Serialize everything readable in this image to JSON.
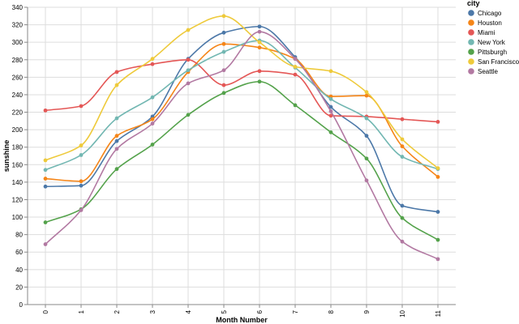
{
  "chart_data": {
    "type": "line",
    "xlabel": "Month Number",
    "ylabel": "sunshine",
    "x": [
      0,
      1,
      2,
      3,
      4,
      5,
      6,
      7,
      8,
      9,
      10,
      11
    ],
    "ylim": [
      0,
      340
    ],
    "yticks": [
      0,
      20,
      40,
      60,
      80,
      100,
      120,
      140,
      160,
      180,
      200,
      220,
      240,
      260,
      280,
      300,
      320,
      340
    ],
    "grid": true,
    "legend": {
      "title": "city",
      "position": "top-right"
    },
    "series": [
      {
        "name": "Chicago",
        "color": "#4c78a8",
        "values": [
          135,
          136,
          187,
          215,
          281,
          311,
          318,
          283,
          226,
          193,
          113,
          106
        ]
      },
      {
        "name": "Houston",
        "color": "#f58518",
        "values": [
          144,
          141,
          193,
          212,
          266,
          298,
          294,
          281,
          238,
          239,
          181,
          146
        ]
      },
      {
        "name": "Miami",
        "color": "#e45756",
        "values": [
          222,
          227,
          266,
          275,
          280,
          251,
          267,
          263,
          216,
          215,
          212,
          209
        ]
      },
      {
        "name": "New York",
        "color": "#72b7b2",
        "values": [
          154,
          171,
          213,
          237,
          268,
          289,
          302,
          271,
          235,
          213,
          169,
          155
        ]
      },
      {
        "name": "Pittsburgh",
        "color": "#54a24b",
        "values": [
          94,
          109,
          155,
          183,
          217,
          242,
          255,
          228,
          197,
          167,
          99,
          74
        ]
      },
      {
        "name": "San Francisco",
        "color": "#eeca3b",
        "values": [
          165,
          182,
          251,
          281,
          314,
          330,
          300,
          272,
          267,
          243,
          189,
          156
        ]
      },
      {
        "name": "Seattle",
        "color": "#b279a2",
        "values": [
          69,
          108,
          178,
          207,
          253,
          268,
          312,
          281,
          221,
          142,
          72,
          52
        ]
      }
    ]
  }
}
